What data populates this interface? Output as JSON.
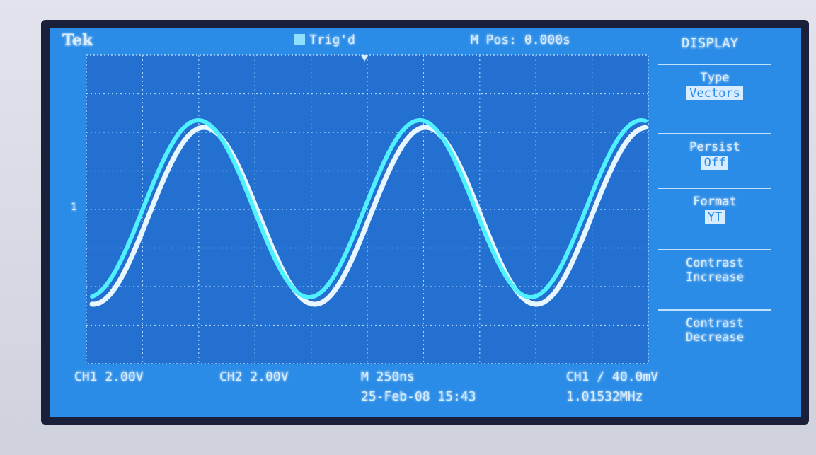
{
  "header": {
    "brand": "Tek",
    "trigger": "Trig'd",
    "position": "M Pos: 0.000s"
  },
  "menu": {
    "title": "DISPLAY",
    "items": [
      {
        "label": "Type",
        "value": "Vectors"
      },
      {
        "label": "Persist",
        "value": "Off"
      },
      {
        "label": "Format",
        "value": "YT"
      },
      {
        "label": "Contrast Increase"
      },
      {
        "label": "Contrast Decrease"
      }
    ]
  },
  "footer": {
    "ch1": "CH1 2.00V",
    "ch2": "CH2 2.00V",
    "timebase": "M 250ns",
    "trigger_level": "CH1 ∕ 40.0mV",
    "date": "25-Feb-08 15:43",
    "frequency": "1.01532MHz"
  },
  "markers": [
    "1"
  ]
}
